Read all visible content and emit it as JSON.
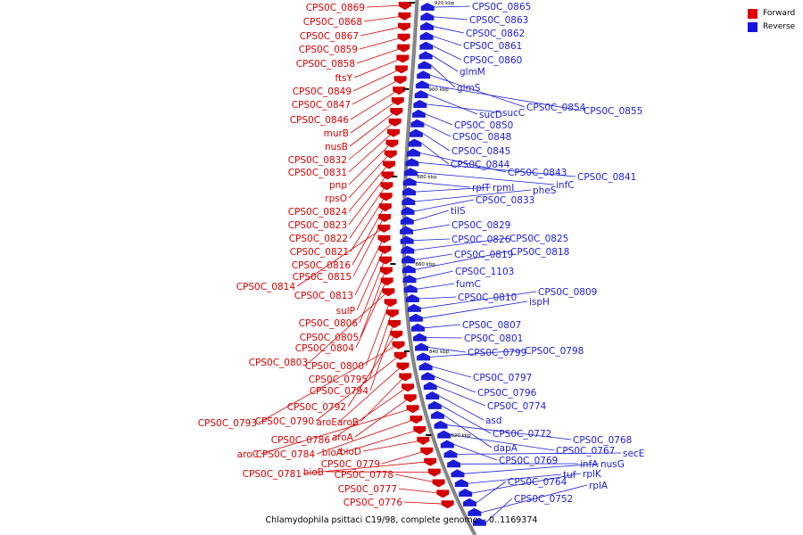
{
  "caption": "Chlamydophila psittaci C19/98, complete genome. - 0..1169374",
  "legend": [
    {
      "label": "Forward",
      "color": "#e00000"
    },
    {
      "label": "Reverse",
      "color": "#1414e0"
    }
  ],
  "ticks": [
    "920 kbp",
    "900 kbp",
    "880 kbp",
    "860 kbp",
    "840 kbp",
    "820 kbp"
  ],
  "forward_labels": [
    "CPS0C_0869",
    "CPS0C_0868",
    "CPS0C_0867",
    "CPS0C_0859",
    "CPS0C_0858",
    "ftsY",
    "CPS0C_0849",
    "CPS0C_0847",
    "CPS0C_0846",
    "murB",
    "nusB",
    "CPS0C_0832",
    "CPS0C_0831",
    "pnp",
    "rpsO",
    "CPS0C_0824",
    "CPS0C_0823",
    "CPS0C_0822",
    "CPS0C_0821",
    "CPS0C_0816",
    "CPS0C_0815",
    "CPS0C_0814",
    "CPS0C_0813",
    "sulP",
    "CPS0C_0806",
    "CPS0C_0805",
    "CPS0C_0804",
    "CPS0C_0803",
    "CPS0C_0800",
    "CPS0C_0795",
    "CPS0C_0794",
    "CPS0C_0792",
    "CPS0C_0793",
    "CPS0C_0790",
    "aroE",
    "aroB",
    "CPS0C_0786",
    "aroA",
    "aroC",
    "CPS0C_0784",
    "bioA",
    "bioD",
    "CPS0C_0779",
    "CPS0C_0781",
    "bioB",
    "CPS0C_0778",
    "CPS0C_0777",
    "CPS0C_0776"
  ],
  "reverse_labels": [
    "CPS0C_0865",
    "CPS0C_0863",
    "CPS0C_0862",
    "CPS0C_0861",
    "CPS0C_0860",
    "glmM",
    "glmS",
    "CPS0C_0854",
    "CPS0C_0855",
    "sucD",
    "sucC",
    "CPS0C_0850",
    "CPS0C_0848",
    "CPS0C_0845",
    "CPS0C_0844",
    "CPS0C_0843",
    "CPS0C_0841",
    "infC",
    "rplT",
    "rpmI",
    "pheS",
    "CPS0C_0833",
    "tilS",
    "CPS0C_0829",
    "CPS0C_0826",
    "CPS0C_0825",
    "CPS0C_0819",
    "CPS0C_0818",
    "CPS0C_1103",
    "fumC",
    "CPS0C_0810",
    "CPS0C_0809",
    "ispH",
    "CPS0C_0807",
    "CPS0C_0801",
    "CPS0C_0799",
    "CPS0C_0798",
    "CPS0C_0797",
    "CPS0C_0796",
    "CPS0C_0774",
    "asd",
    "CPS0C_0772",
    "dapA",
    "CPS0C_0768",
    "CPS0C_0767",
    "CPS0C_0769",
    "secE",
    "infA",
    "nusG",
    "tuf",
    "rplK",
    "CPS0C_0764",
    "rplA",
    "CPS0C_0752"
  ]
}
